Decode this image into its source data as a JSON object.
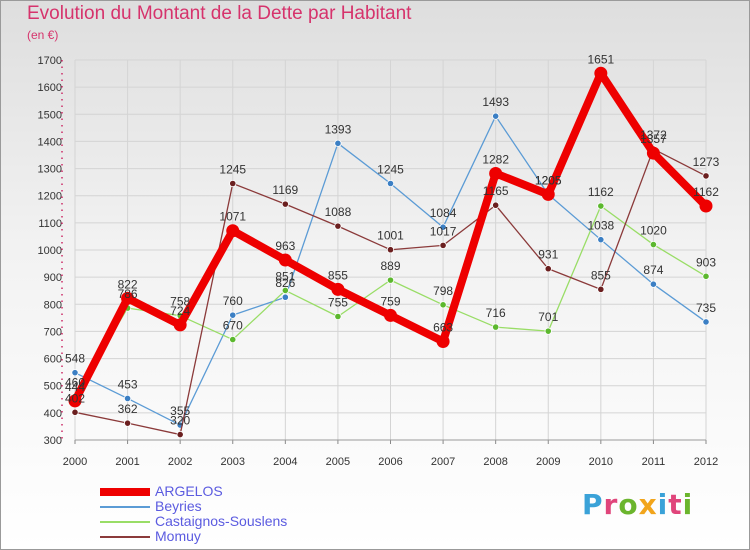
{
  "title": "Evolution du Montant de la Dette par Habitant",
  "subtitle": "(en €)",
  "logo": {
    "text": "Proxiti",
    "letter_colors": [
      "#3aa2d8",
      "#e0457b",
      "#6bb52d",
      "#f2a51c",
      "#3aa2d8",
      "#e0457b",
      "#6bb52d"
    ]
  },
  "chart_data": {
    "type": "line",
    "title": "Evolution du Montant de la Dette par Habitant",
    "subtitle": "(en €)",
    "xlabel": "",
    "ylabel": "",
    "ylim": [
      300,
      1700
    ],
    "yticks": [
      300,
      400,
      500,
      600,
      700,
      800,
      900,
      1000,
      1100,
      1200,
      1300,
      1400,
      1500,
      1600,
      1700
    ],
    "grid": true,
    "legend_position": "bottom-left",
    "x": [
      "2000",
      "2001",
      "2002",
      "2003",
      "2004",
      "2005",
      "2006",
      "2007",
      "2008",
      "2009",
      "2010",
      "2011",
      "2012"
    ],
    "series": [
      {
        "name": "Beyries",
        "color": "#5b9bd5",
        "point_color": "#3b7fc4",
        "values": [
          548,
          453,
          355,
          760,
          826,
          1393,
          1245,
          1084,
          1493,
          1205,
          1038,
          874,
          735
        ]
      },
      {
        "name": "Castaignos-Souslens",
        "color": "#99dd66",
        "point_color": "#5cb82e",
        "values": [
          460,
          786,
          758,
          670,
          851,
          755,
          889,
          798,
          716,
          701,
          1162,
          1020,
          903
        ]
      },
      {
        "name": "Momuy",
        "color": "#8b3a3a",
        "point_color": "#6b1f1f",
        "values": [
          402,
          362,
          320,
          1245,
          1169,
          1088,
          1001,
          1017,
          1165,
          931,
          855,
          1372,
          1273
        ]
      },
      {
        "name": "ARGELOS",
        "color": "#ee0000",
        "point_color": "#ee0000",
        "values": [
          444,
          822,
          724,
          1071,
          963,
          855,
          759,
          663,
          1282,
          1205,
          1651,
          1357,
          1162
        ]
      }
    ]
  }
}
